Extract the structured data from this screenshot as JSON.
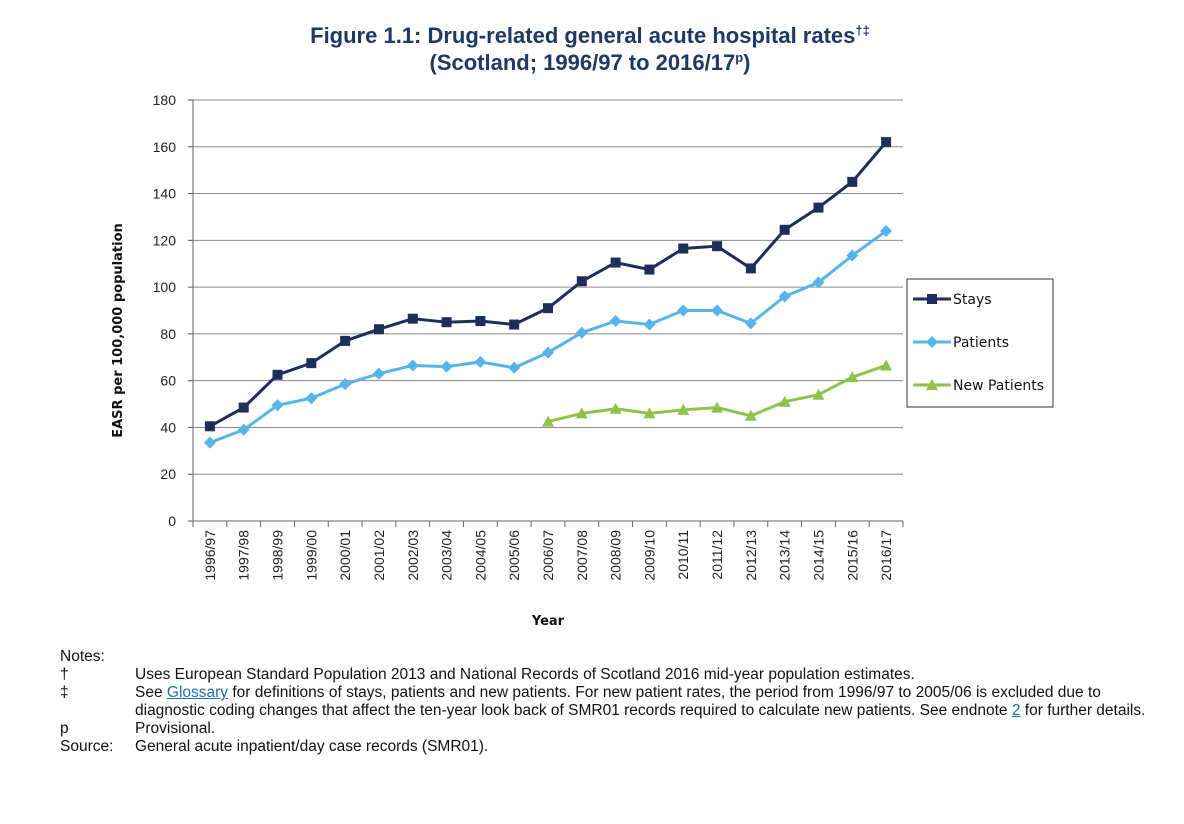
{
  "title": {
    "line1": "Figure 1.1: Drug-related general acute hospital rates",
    "line1_sup": "†‡",
    "line2_prefix": "(Scotland; 1996/97 to 2016/17",
    "line2_sup": "p",
    "line2_suffix": ")"
  },
  "chart_data": {
    "type": "line",
    "xlabel": "Year",
    "ylabel": "EASR per 100,000 population",
    "ylim": [
      0,
      180
    ],
    "ytick_step": 20,
    "grid": "horizontal",
    "legend_position": "right",
    "categories": [
      "1996/97",
      "1997/98",
      "1998/99",
      "1999/00",
      "2000/01",
      "2001/02",
      "2002/03",
      "2003/04",
      "2004/05",
      "2005/06",
      "2006/07",
      "2007/08",
      "2008/09",
      "2009/10",
      "2010/11",
      "2011/12",
      "2012/13",
      "2013/14",
      "2014/15",
      "2015/16",
      "2016/17"
    ],
    "series": [
      {
        "name": "Stays",
        "color": "#1f2d5c",
        "marker": "square",
        "values": [
          40.5,
          48.5,
          62.5,
          67.5,
          77,
          82,
          86.5,
          85,
          85.5,
          84,
          91,
          102.5,
          110.5,
          107.5,
          116.5,
          117.5,
          108,
          124.5,
          134,
          145,
          162
        ]
      },
      {
        "name": "Patients",
        "color": "#56b4ec",
        "marker": "diamond",
        "values": [
          33.5,
          39,
          49.5,
          52.5,
          58.5,
          63,
          66.5,
          66,
          68,
          65.5,
          72,
          80.5,
          85.5,
          84,
          90,
          90,
          84.5,
          96,
          102,
          113.5,
          124
        ]
      },
      {
        "name": "New Patients",
        "color": "#92c14b",
        "marker": "triangle",
        "values": [
          null,
          null,
          null,
          null,
          null,
          null,
          null,
          null,
          null,
          null,
          42.5,
          46,
          48,
          46,
          47.5,
          48.5,
          45,
          51,
          54,
          61.5,
          66.5
        ]
      }
    ]
  },
  "notes": {
    "heading": "Notes:",
    "items": [
      {
        "key": "†",
        "text": "Uses European Standard Population 2013 and National Records of Scotland 2016 mid-year population estimates."
      },
      {
        "key": "‡",
        "pre": "See ",
        "link": "Glossary",
        "mid": " for definitions of stays, patients and new patients. For new patient rates, the period from 1996/97 to 2005/06 is excluded due to diagnostic coding changes that affect the ten-year look back of SMR01 records required to calculate new patients. See endnote ",
        "link2": "2",
        "post": " for further details."
      },
      {
        "key": "p",
        "text": "Provisional."
      },
      {
        "key": "Source:",
        "text": "General acute inpatient/day case records (SMR01)."
      }
    ]
  }
}
